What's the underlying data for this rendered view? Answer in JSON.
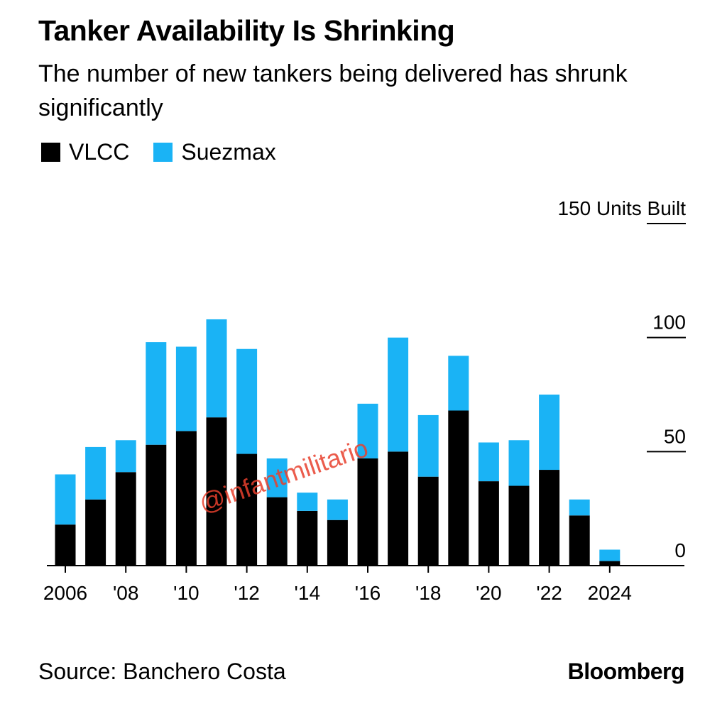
{
  "chart_data": {
    "type": "bar",
    "stacked": true,
    "title": "Tanker Availability Is Shrinking",
    "subtitle": "The number of new tankers being delivered has shrunk significantly",
    "ylabel": "Units Built",
    "y_unit_label": "150 Units Built",
    "ylim": [
      0,
      150
    ],
    "y_ticks": [
      {
        "value": 0,
        "label": "0"
      },
      {
        "value": 50,
        "label": "50"
      },
      {
        "value": 100,
        "label": "100"
      },
      {
        "value": 150,
        "label": "150 Units Built"
      }
    ],
    "categories": [
      "2006",
      "2007",
      "2008",
      "2009",
      "2010",
      "2011",
      "2012",
      "2013",
      "2014",
      "2015",
      "2016",
      "2017",
      "2018",
      "2019",
      "2020",
      "2021",
      "2022",
      "2023",
      "2024"
    ],
    "x_tick_labels": [
      {
        "index": 0,
        "label": "2006"
      },
      {
        "index": 2,
        "label": "'08"
      },
      {
        "index": 4,
        "label": "'10"
      },
      {
        "index": 6,
        "label": "'12"
      },
      {
        "index": 8,
        "label": "'14"
      },
      {
        "index": 10,
        "label": "'16"
      },
      {
        "index": 12,
        "label": "'18"
      },
      {
        "index": 14,
        "label": "'20"
      },
      {
        "index": 16,
        "label": "'22"
      },
      {
        "index": 18,
        "label": "2024"
      }
    ],
    "series": [
      {
        "name": "VLCC",
        "color": "#000000",
        "values": [
          18,
          29,
          41,
          53,
          59,
          65,
          49,
          30,
          24,
          20,
          47,
          50,
          39,
          68,
          37,
          35,
          42,
          22,
          2
        ]
      },
      {
        "name": "Suezmax",
        "color": "#1ab3f5",
        "values": [
          22,
          23,
          14,
          45,
          37,
          43,
          46,
          17,
          8,
          9,
          24,
          50,
          27,
          24,
          17,
          20,
          33,
          7,
          5
        ]
      }
    ]
  },
  "source": "Source: Banchero Costa",
  "brand": "Bloomberg",
  "watermark": "@infantmilitario"
}
